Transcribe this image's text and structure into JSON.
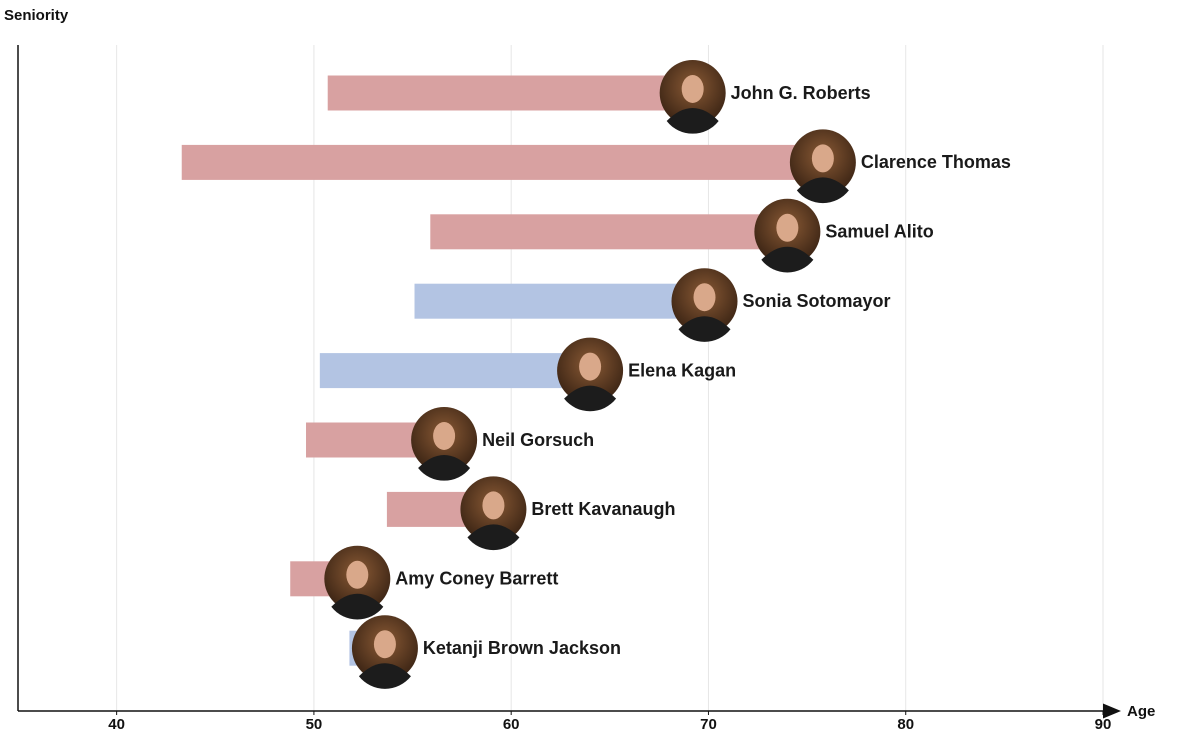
{
  "chart_data": {
    "type": "range-bar",
    "y_label": "Seniority",
    "x_label": "Age",
    "categories": [
      "John G. Roberts",
      "Clarence Thomas",
      "Samuel Alito",
      "Sonia Sotomayor",
      "Elena Kagan",
      "Neil Gorsuch",
      "Brett Kavanaugh",
      "Amy Coney Barrett",
      "Ketanji Brown Jackson"
    ],
    "start": [
      50.7,
      43.3,
      55.9,
      55.1,
      50.3,
      49.6,
      53.7,
      48.8,
      51.8
    ],
    "end": [
      69.2,
      75.8,
      74.0,
      69.8,
      64.0,
      56.6,
      59.1,
      52.2,
      53.6
    ],
    "colors": [
      "#d8a1a1",
      "#d8a1a1",
      "#d8a1a1",
      "#b3c4e3",
      "#b3c4e3",
      "#d8a1a1",
      "#d8a1a1",
      "#d8a1a1",
      "#b3c4e3"
    ],
    "xlim": [
      35,
      90
    ],
    "xticks": [
      40,
      50,
      60,
      70,
      80,
      90
    ],
    "grid": true
  }
}
